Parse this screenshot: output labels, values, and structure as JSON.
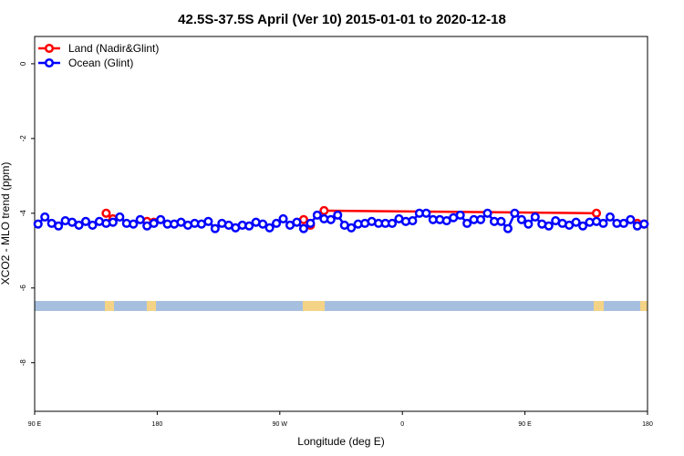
{
  "chart_data": {
    "type": "line",
    "title": "42.5S-37.5S April (Ver 10)   2015-01-01 to 2020-12-18",
    "xlabel": "Longitude (deg E)",
    "ylabel": "XCO2 - MLO trend (ppm)",
    "xlim": [
      90,
      540
    ],
    "ylim": [
      -9.3,
      0.73
    ],
    "xticks": [
      {
        "value": 90,
        "label": "90 E"
      },
      180,
      {
        "value": 270,
        "label": "90 W"
      },
      {
        "value": 360,
        "label": "0"
      },
      {
        "value": 450,
        "label": "90 E"
      },
      {
        "value": 540,
        "label": "180"
      }
    ],
    "yticks": [
      0,
      -2,
      -4,
      -6,
      -8
    ],
    "legend": "top-left",
    "series": [
      {
        "name": "Land (Nadir&Glint)",
        "color": "#ff0000",
        "x": [
          142.5,
          147.5,
          152.5,
          172.5,
          177.5,
          182.5,
          287.5,
          292.5,
          297.5,
          302.5,
          502.5,
          507.5,
          527.5,
          532.5,
          537.5
        ],
        "values": [
          -4.0,
          -4.15,
          null,
          -4.22,
          -4.24,
          null,
          -4.17,
          -4.32,
          null,
          -3.93,
          -4.0,
          null,
          null,
          -4.27,
          -4.29
        ]
      },
      {
        "name": "Ocean (Glint)",
        "color": "#0000ff",
        "x": [
          92.5,
          97.5,
          102.5,
          107.5,
          112.5,
          117.5,
          122.5,
          127.5,
          132.5,
          137.5,
          142.5,
          147.5,
          152.5,
          157.5,
          162.5,
          167.5,
          172.5,
          177.5,
          182.5,
          187.5,
          192.5,
          197.5,
          202.5,
          207.5,
          212.5,
          217.5,
          222.5,
          227.5,
          232.5,
          237.5,
          242.5,
          247.5,
          252.5,
          257.5,
          262.5,
          267.5,
          272.5,
          277.5,
          282.5,
          287.5,
          292.5,
          297.5,
          302.5,
          307.5,
          312.5,
          317.5,
          322.5,
          327.5,
          332.5,
          337.5,
          342.5,
          347.5,
          352.5,
          357.5,
          362.5,
          367.5,
          372.5,
          377.5,
          382.5,
          387.5,
          392.5,
          397.5,
          402.5,
          407.5,
          412.5,
          417.5,
          422.5,
          427.5,
          432.5,
          437.5,
          442.5,
          447.5,
          452.5,
          457.5,
          462.5,
          467.5,
          472.5,
          477.5,
          482.5,
          487.5,
          492.5,
          497.5,
          502.5,
          507.5,
          512.5,
          517.5,
          522.5,
          527.5,
          532.5,
          537.5
        ],
        "values": [
          -4.29,
          -4.1,
          -4.27,
          -4.34,
          -4.2,
          -4.24,
          -4.32,
          -4.22,
          -4.32,
          -4.22,
          -4.27,
          -4.24,
          -4.1,
          -4.27,
          -4.29,
          -4.17,
          -4.34,
          -4.27,
          -4.17,
          -4.29,
          -4.29,
          -4.24,
          -4.32,
          -4.27,
          -4.29,
          -4.22,
          -4.41,
          -4.27,
          -4.32,
          -4.39,
          -4.32,
          -4.34,
          -4.24,
          -4.29,
          -4.39,
          -4.27,
          -4.15,
          -4.32,
          -4.24,
          -4.41,
          -4.27,
          -4.05,
          -4.15,
          -4.17,
          -4.05,
          -4.32,
          -4.39,
          -4.29,
          -4.27,
          -4.22,
          -4.27,
          -4.27,
          -4.27,
          -4.15,
          -4.22,
          -4.2,
          -4.0,
          -4.0,
          -4.17,
          -4.17,
          -4.2,
          -4.12,
          -4.05,
          -4.27,
          -4.17,
          -4.17,
          -4.0,
          -4.22,
          -4.22,
          -4.41,
          -4.0,
          -4.17,
          -4.29,
          -4.1,
          -4.29,
          -4.34,
          -4.2,
          -4.27,
          -4.32,
          -4.24,
          -4.34,
          -4.24,
          -4.22,
          -4.27,
          -4.1,
          -4.27,
          -4.27,
          -4.17,
          -4.34,
          -4.29
        ]
      }
    ]
  }
}
